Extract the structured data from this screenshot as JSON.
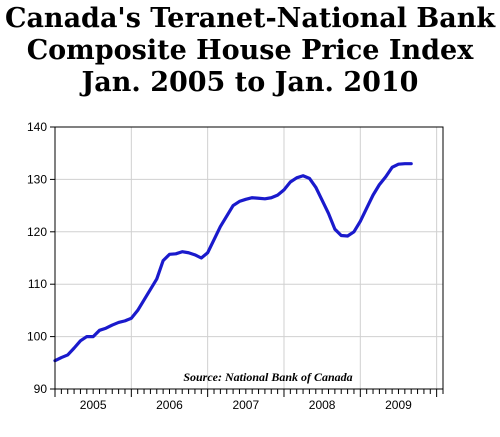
{
  "colors": {
    "line": "#1a1acc",
    "grid": "#d0d0d0",
    "axis": "#000000",
    "background": "#ffffff"
  },
  "chart_data": {
    "type": "line",
    "title": [
      "Canada's Teranet-National Bank",
      "Composite House Price Index",
      "Jan. 2005 to Jan. 2010"
    ],
    "annotation": "Source: National Bank of Canada",
    "xlabel": "",
    "ylabel": "",
    "ylim": [
      90,
      140
    ],
    "yticks": [
      90,
      100,
      110,
      120,
      130,
      140
    ],
    "xlim": [
      "2005-01",
      "2010-02"
    ],
    "xtick_labels": [
      "2005",
      "2006",
      "2007",
      "2008",
      "2009"
    ],
    "grid": true,
    "legend": "none",
    "series": [
      {
        "x": [
          "2005-01",
          "2005-02",
          "2005-03",
          "2005-04",
          "2005-05",
          "2005-06",
          "2005-07",
          "2005-08",
          "2005-09",
          "2005-10",
          "2005-11",
          "2005-12",
          "2006-01",
          "2006-02",
          "2006-03",
          "2006-04",
          "2006-05",
          "2006-06",
          "2006-07",
          "2006-08",
          "2006-09",
          "2006-10",
          "2006-11",
          "2006-12",
          "2007-01",
          "2007-02",
          "2007-03",
          "2007-04",
          "2007-05",
          "2007-06",
          "2007-07",
          "2007-08",
          "2007-09",
          "2007-10",
          "2007-11",
          "2007-12",
          "2008-01",
          "2008-02",
          "2008-03",
          "2008-04",
          "2008-05",
          "2008-06",
          "2008-07",
          "2008-08",
          "2008-09",
          "2008-10",
          "2008-11",
          "2008-12",
          "2009-01",
          "2009-02",
          "2009-03",
          "2009-04",
          "2009-05",
          "2009-06",
          "2009-07",
          "2009-08",
          "2009-09",
          "2009-10",
          "2009-11",
          "2009-12",
          "2010-01"
        ],
        "values": [
          95.4,
          96.0,
          96.5,
          97.8,
          99.2,
          100.0,
          100.0,
          101.2,
          101.6,
          102.2,
          102.7,
          103.0,
          103.5,
          105.0,
          107.0,
          109.0,
          111.0,
          114.5,
          115.7,
          115.8,
          116.2,
          116.0,
          115.6,
          115.0,
          116.0,
          118.5,
          121.0,
          123.0,
          125.0,
          125.8,
          126.2,
          126.5,
          126.4,
          126.3,
          126.5,
          127.0,
          128.0,
          129.5,
          130.3,
          130.7,
          130.2,
          128.5,
          126.0,
          123.5,
          120.5,
          119.3,
          119.2,
          120.0,
          122.0,
          124.5,
          127.0,
          129.0,
          130.5,
          132.3,
          132.9,
          133.0,
          133.0,
          133.0,
          133.0,
          133.0,
          133.0
        ]
      }
    ]
  }
}
